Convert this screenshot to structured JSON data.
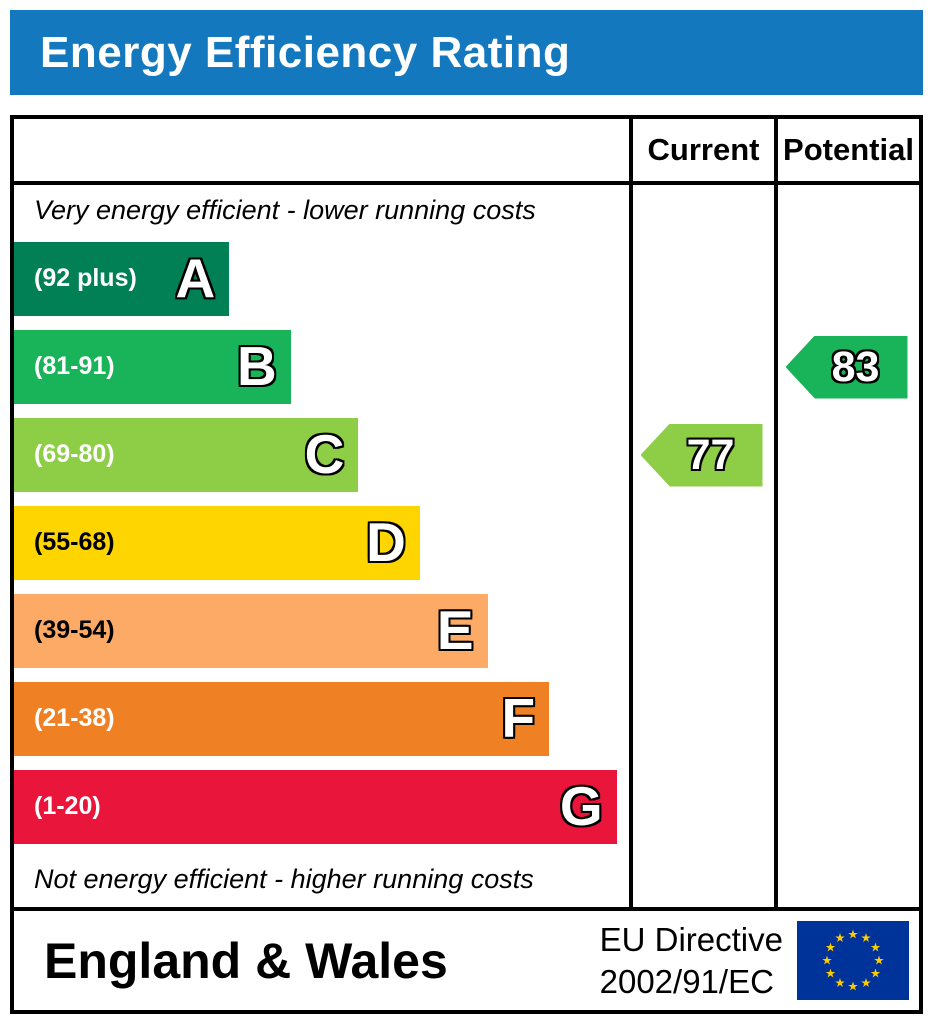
{
  "header": {
    "title": "Energy Efficiency Rating",
    "bg_color": "#1478be"
  },
  "table": {
    "current_label": "Current",
    "potential_label": "Potential",
    "top_note": "Very energy efficient - lower running costs",
    "bottom_note": "Not energy efficient - higher running costs"
  },
  "bands": [
    {
      "letter": "A",
      "range": "(92 plus)",
      "color": "#008054",
      "width_pct": 35,
      "text_color": "#ffffff"
    },
    {
      "letter": "B",
      "range": "(81-91)",
      "color": "#19b459",
      "width_pct": 45,
      "text_color": "#ffffff"
    },
    {
      "letter": "C",
      "range": "(69-80)",
      "color": "#8dce46",
      "width_pct": 56,
      "text_color": "#ffffff"
    },
    {
      "letter": "D",
      "range": "(55-68)",
      "color": "#ffd500",
      "width_pct": 66,
      "text_color": "#000000"
    },
    {
      "letter": "E",
      "range": "(39-54)",
      "color": "#fcaa65",
      "width_pct": 77,
      "text_color": "#000000"
    },
    {
      "letter": "F",
      "range": "(21-38)",
      "color": "#ef8023",
      "width_pct": 87,
      "text_color": "#ffffff"
    },
    {
      "letter": "G",
      "range": "(1-20)",
      "color": "#e9153b",
      "width_pct": 98,
      "text_color": "#ffffff"
    }
  ],
  "ratings": {
    "current": {
      "value": "77",
      "color": "#8dce46",
      "band_index": 2
    },
    "potential": {
      "value": "83",
      "color": "#19b459",
      "band_index": 1
    }
  },
  "footer": {
    "region": "England & Wales",
    "directive_line1": "EU Directive",
    "directive_line2": "2002/91/EC",
    "flag_bg": "#003399",
    "flag_star_color": "#ffcc00"
  },
  "chart_data": {
    "type": "bar",
    "title": "Energy Efficiency Rating",
    "orientation": "horizontal",
    "categories": [
      "A",
      "B",
      "C",
      "D",
      "E",
      "F",
      "G"
    ],
    "ranges": [
      "92 plus",
      "81-91",
      "69-80",
      "55-68",
      "39-54",
      "21-38",
      "1-20"
    ],
    "bar_relative_widths_pct": [
      35,
      45,
      56,
      66,
      77,
      87,
      98
    ],
    "colors": [
      "#008054",
      "#19b459",
      "#8dce46",
      "#ffd500",
      "#fcaa65",
      "#ef8023",
      "#e9153b"
    ],
    "markers": [
      {
        "name": "Current",
        "value": 77,
        "band": "C",
        "color": "#8dce46"
      },
      {
        "name": "Potential",
        "value": 83,
        "band": "B",
        "color": "#19b459"
      }
    ],
    "annotations": [
      "Very energy efficient - lower running costs",
      "Not energy efficient - higher running costs"
    ],
    "footer_text": "England & Wales | EU Directive 2002/91/EC",
    "legend_position": "none",
    "grid": false
  }
}
